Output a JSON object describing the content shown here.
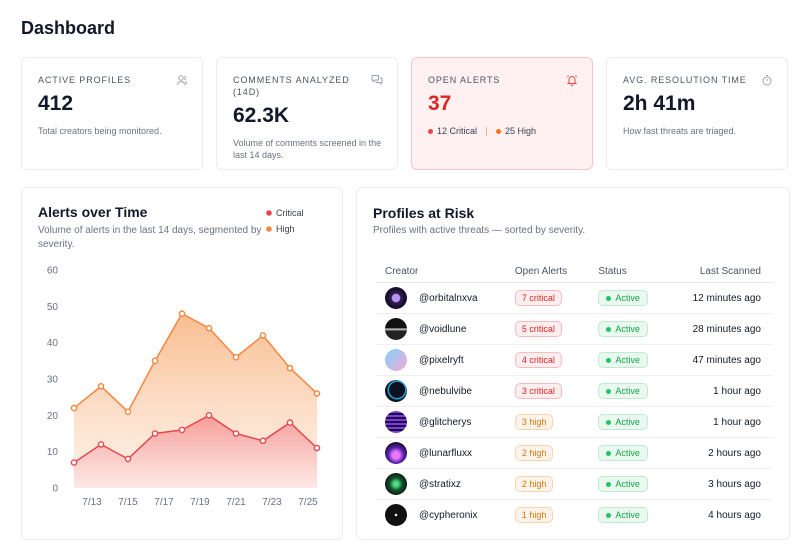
{
  "header": {
    "title": "Dashboard"
  },
  "kpis": [
    {
      "label": "ACTIVE PROFILES",
      "value": "412",
      "note": "Total creators being monitored."
    },
    {
      "label": "COMMENTS ANALYZED (14D)",
      "value": "62.3K",
      "note": "Volume of comments screened in the last 14 days."
    },
    {
      "label": "OPEN ALERTS",
      "value": "37",
      "breakdown": [
        {
          "text": "12 Critical",
          "color": "#ef4444"
        },
        {
          "text": "25 High",
          "color": "#f97316"
        }
      ]
    },
    {
      "label": "AVG. RESOLUTION TIME",
      "value": "2h 41m",
      "note": "How fast threats are triaged."
    }
  ],
  "chart_data": {
    "type": "line",
    "area": true,
    "title": "Alerts over Time",
    "subtitle": "Volume of alerts in the last 14 days, segmented by severity.",
    "x": [
      12,
      13.5,
      15,
      16.5,
      18,
      19.5,
      21,
      22.5,
      24,
      25.5
    ],
    "xlim": [
      11.5,
      26.5
    ],
    "xticks": [
      {
        "value": 13,
        "label": "7/13"
      },
      {
        "value": 15,
        "label": "7/15"
      },
      {
        "value": 17,
        "label": "7/17"
      },
      {
        "value": 19,
        "label": "7/19"
      },
      {
        "value": 21,
        "label": "7/21"
      },
      {
        "value": 23,
        "label": "7/23"
      },
      {
        "value": 25,
        "label": "7/25"
      }
    ],
    "ylim": [
      0,
      60
    ],
    "yticks": [
      0,
      10,
      20,
      30,
      40,
      50,
      60
    ],
    "grid": false,
    "legend": "top-right",
    "series": [
      {
        "name": "Critical",
        "color": "#e5484d",
        "values": [
          7,
          12,
          8,
          15,
          16,
          20,
          15,
          13,
          18,
          11
        ]
      },
      {
        "name": "High",
        "color": "#f4863f",
        "values": [
          22,
          28,
          21,
          35,
          48,
          44,
          36,
          42,
          33,
          26
        ]
      }
    ]
  },
  "table": {
    "title": "Profiles at Risk",
    "subtitle": "Profiles with active threats — sorted by severity.",
    "columns": [
      "Creator",
      "Open Alerts",
      "Status",
      "Last Scanned"
    ],
    "rows": [
      {
        "creator": "@orbitalnxva",
        "alerts": "7 critical",
        "alerts_color": "#dc2626",
        "status": "Active",
        "scanned": "12 minutes ago"
      },
      {
        "creator": "@voidlune",
        "alerts": "5 critical",
        "alerts_color": "#dc2626",
        "status": "Active",
        "scanned": "28 minutes ago"
      },
      {
        "creator": "@pixelryft",
        "alerts": "4 critical",
        "alerts_color": "#dc2626",
        "status": "Active",
        "scanned": "47 minutes ago"
      },
      {
        "creator": "@nebulvibe",
        "alerts": "3 critical",
        "alerts_color": "#dc2626",
        "status": "Active",
        "scanned": "1 hour ago"
      },
      {
        "creator": "@glitcherys",
        "alerts": "3 high",
        "alerts_color": "#d97706",
        "status": "Active",
        "scanned": "1 hour ago"
      },
      {
        "creator": "@lunarfluxx",
        "alerts": "2 high",
        "alerts_color": "#d97706",
        "status": "Active",
        "scanned": "2 hours ago"
      },
      {
        "creator": "@stratixz",
        "alerts": "2 high",
        "alerts_color": "#d97706",
        "status": "Active",
        "scanned": "3 hours ago"
      },
      {
        "creator": "@cypheronix",
        "alerts": "1 high",
        "alerts_color": "#d97706",
        "status": "Active",
        "scanned": "4 hours ago"
      }
    ]
  }
}
